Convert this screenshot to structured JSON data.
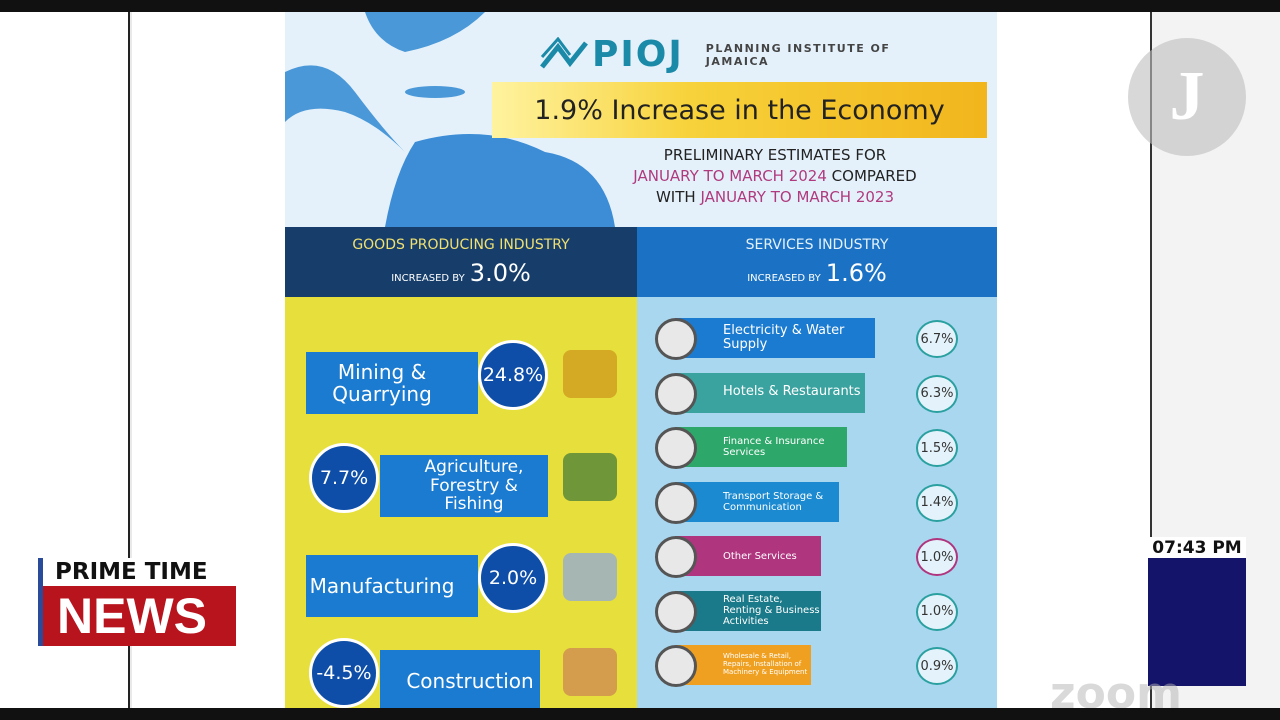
{
  "logo": {
    "name": "PIOJ",
    "org": "PLANNING INSTITUTE OF JAMAICA"
  },
  "headline": "1.9% Increase in the Economy",
  "subtitle": {
    "line1": "PRELIMINARY ESTIMATES FOR",
    "period1": "JANUARY TO MARCH 2024",
    "compared": "COMPARED",
    "with": "WITH",
    "period2": "JANUARY TO MARCH 2023"
  },
  "goods": {
    "title": "GOODS PRODUCING INDUSTRY",
    "increased_by": "INCREASED BY",
    "value": "3.0%",
    "items": [
      {
        "label": "Mining & Quarrying",
        "value": "24.8%"
      },
      {
        "label": "Agriculture, Forestry & Fishing",
        "value": "7.7%"
      },
      {
        "label": "Manufacturing",
        "value": "2.0%"
      },
      {
        "label": "Construction",
        "value": "-4.5%"
      }
    ]
  },
  "services": {
    "title": "SERVICES INDUSTRY",
    "increased_by": "INCREASED BY",
    "value": "1.6%",
    "items": [
      {
        "label": "Electricity & Water Supply",
        "value": "6.7%"
      },
      {
        "label": "Hotels & Restaurants",
        "value": "6.3%"
      },
      {
        "label": "Finance & Insurance Services",
        "value": "1.5%"
      },
      {
        "label": "Transport Storage & Communication",
        "value": "1.4%"
      },
      {
        "label": "Other Services",
        "value": "1.0%"
      },
      {
        "label": "Real Estate, Renting & Business Activities",
        "value": "1.0%"
      },
      {
        "label": "Wholesale & Retail, Repairs, Installation of Machinery & Equipment",
        "value": "0.9%"
      }
    ]
  },
  "broadcast": {
    "show_top": "PRIME TIME",
    "show_bottom": "NEWS",
    "time": "07:43 PM",
    "watermark": "zoom"
  }
}
